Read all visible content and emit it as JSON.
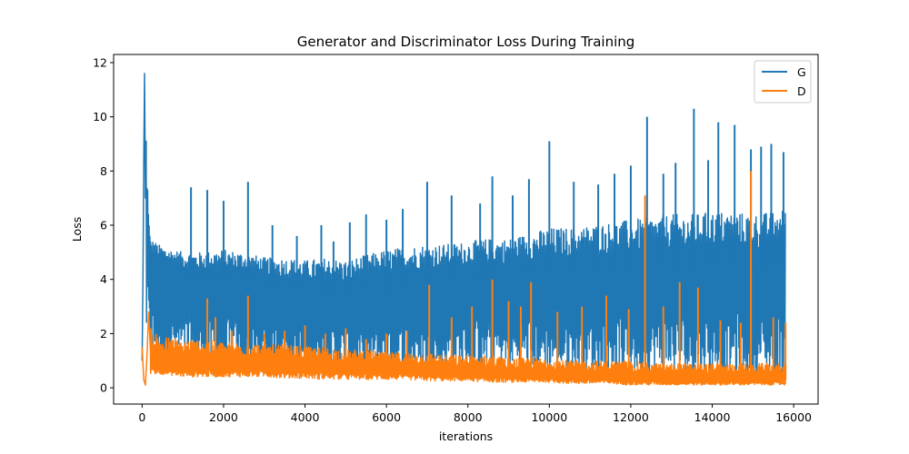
{
  "chart_data": {
    "type": "line",
    "title": "Generator and Discriminator Loss During Training",
    "xlabel": "iterations",
    "ylabel": "Loss",
    "xlim": [
      -700,
      16600
    ],
    "ylim": [
      -0.6,
      12.3
    ],
    "xticks": [
      0,
      2000,
      4000,
      6000,
      8000,
      10000,
      12000,
      14000,
      16000
    ],
    "yticks": [
      0,
      2,
      4,
      6,
      8,
      10,
      12
    ],
    "grid": false,
    "legend": "top-right",
    "series": [
      {
        "name": "G",
        "color": "#1f77b4",
        "points": [
          [
            0,
            1.0
          ],
          [
            20,
            4.0
          ],
          [
            40,
            8.3
          ],
          [
            60,
            11.6
          ],
          [
            80,
            7.0
          ],
          [
            100,
            9.1
          ],
          [
            120,
            6.5
          ],
          [
            140,
            8.4
          ],
          [
            160,
            5.2
          ],
          [
            200,
            4.6
          ],
          [
            300,
            4.5
          ],
          [
            500,
            4.4
          ],
          [
            800,
            4.2
          ],
          [
            1000,
            4.1
          ],
          [
            1200,
            4.0
          ],
          [
            1400,
            3.9
          ],
          [
            1600,
            4.0
          ],
          [
            1800,
            4.0
          ],
          [
            2000,
            3.9
          ],
          [
            2500,
            3.9
          ],
          [
            3000,
            3.8
          ],
          [
            3500,
            3.6
          ],
          [
            4000,
            3.5
          ],
          [
            4500,
            3.5
          ],
          [
            5000,
            3.4
          ],
          [
            5500,
            3.5
          ],
          [
            6000,
            3.6
          ],
          [
            6500,
            3.8
          ],
          [
            7000,
            3.9
          ],
          [
            7500,
            3.9
          ],
          [
            8000,
            4.0
          ],
          [
            8500,
            4.0
          ],
          [
            9000,
            4.1
          ],
          [
            9500,
            4.1
          ],
          [
            10000,
            4.2
          ],
          [
            10500,
            4.2
          ],
          [
            11000,
            4.2
          ],
          [
            11500,
            4.3
          ],
          [
            12000,
            4.3
          ],
          [
            12500,
            4.4
          ],
          [
            13000,
            4.4
          ],
          [
            13500,
            4.4
          ],
          [
            14000,
            4.5
          ],
          [
            14500,
            4.5
          ],
          [
            15000,
            4.4
          ],
          [
            15500,
            4.5
          ],
          [
            15800,
            4.6
          ]
        ],
        "band": [
          [
            100,
            1.2,
            8.0
          ],
          [
            200,
            1.0,
            5.5
          ],
          [
            500,
            0.9,
            5.2
          ],
          [
            1000,
            0.8,
            5.0
          ],
          [
            1500,
            0.7,
            5.0
          ],
          [
            2000,
            0.7,
            5.1
          ],
          [
            2500,
            0.6,
            5.0
          ],
          [
            3000,
            0.6,
            4.8
          ],
          [
            3500,
            0.5,
            4.8
          ],
          [
            4000,
            0.5,
            4.7
          ],
          [
            4500,
            0.5,
            4.8
          ],
          [
            5000,
            0.5,
            4.7
          ],
          [
            5500,
            0.5,
            4.9
          ],
          [
            6000,
            0.6,
            5.1
          ],
          [
            6500,
            0.6,
            5.2
          ],
          [
            7000,
            0.6,
            5.3
          ],
          [
            7500,
            0.6,
            5.3
          ],
          [
            8000,
            0.6,
            5.4
          ],
          [
            8500,
            0.6,
            5.5
          ],
          [
            9000,
            0.6,
            5.5
          ],
          [
            9500,
            0.6,
            5.7
          ],
          [
            10000,
            0.5,
            5.9
          ],
          [
            10500,
            0.5,
            5.9
          ],
          [
            11000,
            0.5,
            6.0
          ],
          [
            11500,
            0.5,
            6.1
          ],
          [
            12000,
            0.5,
            6.2
          ],
          [
            12500,
            0.4,
            6.3
          ],
          [
            13000,
            0.4,
            6.4
          ],
          [
            13500,
            0.4,
            6.4
          ],
          [
            14000,
            0.4,
            6.5
          ],
          [
            14500,
            0.4,
            6.5
          ],
          [
            15000,
            0.4,
            6.4
          ],
          [
            15500,
            0.4,
            6.5
          ],
          [
            15800,
            0.4,
            6.6
          ]
        ],
        "spikes": [
          [
            1200,
            7.4
          ],
          [
            1600,
            7.3
          ],
          [
            2000,
            6.9
          ],
          [
            2600,
            7.6
          ],
          [
            3200,
            6.0
          ],
          [
            3800,
            5.6
          ],
          [
            4400,
            6.0
          ],
          [
            4700,
            5.4
          ],
          [
            5100,
            6.1
          ],
          [
            5500,
            6.4
          ],
          [
            6000,
            6.2
          ],
          [
            6400,
            6.6
          ],
          [
            7000,
            7.6
          ],
          [
            7600,
            7.1
          ],
          [
            8300,
            6.8
          ],
          [
            8600,
            7.8
          ],
          [
            9100,
            7.1
          ],
          [
            9500,
            7.7
          ],
          [
            10000,
            9.1
          ],
          [
            10600,
            7.6
          ],
          [
            11200,
            7.5
          ],
          [
            11600,
            7.9
          ],
          [
            12000,
            8.2
          ],
          [
            12400,
            10.0
          ],
          [
            12800,
            7.9
          ],
          [
            13100,
            8.3
          ],
          [
            13550,
            10.3
          ],
          [
            13900,
            8.4
          ],
          [
            14150,
            9.8
          ],
          [
            14550,
            9.7
          ],
          [
            14950,
            8.8
          ],
          [
            15200,
            8.9
          ],
          [
            15450,
            9.0
          ],
          [
            15750,
            8.7
          ]
        ]
      },
      {
        "name": "D",
        "color": "#ff7f0e",
        "points": [
          [
            0,
            1.5
          ],
          [
            40,
            0.3
          ],
          [
            80,
            0.1
          ],
          [
            120,
            1.2
          ],
          [
            160,
            2.8
          ],
          [
            200,
            1.5
          ],
          [
            300,
            0.9
          ],
          [
            500,
            0.8
          ],
          [
            1000,
            0.8
          ],
          [
            1500,
            0.8
          ],
          [
            2000,
            0.8
          ],
          [
            2500,
            0.8
          ],
          [
            3000,
            0.8
          ],
          [
            3500,
            0.75
          ],
          [
            4000,
            0.75
          ],
          [
            4500,
            0.75
          ],
          [
            5000,
            0.7
          ],
          [
            5500,
            0.7
          ],
          [
            6000,
            0.65
          ],
          [
            6500,
            0.6
          ],
          [
            7000,
            0.6
          ],
          [
            7500,
            0.55
          ],
          [
            8000,
            0.5
          ],
          [
            8500,
            0.5
          ],
          [
            9000,
            0.45
          ],
          [
            9500,
            0.45
          ],
          [
            10000,
            0.45
          ],
          [
            10500,
            0.4
          ],
          [
            11000,
            0.4
          ],
          [
            11500,
            0.4
          ],
          [
            12000,
            0.35
          ],
          [
            12500,
            0.35
          ],
          [
            13000,
            0.3
          ],
          [
            13500,
            0.3
          ],
          [
            14000,
            0.3
          ],
          [
            14500,
            0.3
          ],
          [
            15000,
            0.3
          ],
          [
            15500,
            0.3
          ],
          [
            15800,
            0.3
          ]
        ],
        "band": [
          [
            200,
            0.5,
            2.2
          ],
          [
            500,
            0.5,
            1.9
          ],
          [
            1000,
            0.4,
            1.8
          ],
          [
            1500,
            0.4,
            1.8
          ],
          [
            2000,
            0.4,
            1.7
          ],
          [
            2500,
            0.4,
            1.7
          ],
          [
            3000,
            0.4,
            1.6
          ],
          [
            3500,
            0.35,
            1.6
          ],
          [
            4000,
            0.35,
            1.5
          ],
          [
            4500,
            0.3,
            1.5
          ],
          [
            5000,
            0.3,
            1.4
          ],
          [
            5500,
            0.3,
            1.4
          ],
          [
            6000,
            0.3,
            1.3
          ],
          [
            6500,
            0.3,
            1.3
          ],
          [
            7000,
            0.25,
            1.3
          ],
          [
            7500,
            0.25,
            1.2
          ],
          [
            8000,
            0.25,
            1.2
          ],
          [
            8500,
            0.2,
            1.2
          ],
          [
            9000,
            0.2,
            1.1
          ],
          [
            9500,
            0.2,
            1.1
          ],
          [
            10000,
            0.2,
            1.1
          ],
          [
            10500,
            0.15,
            1.0
          ],
          [
            11000,
            0.15,
            1.0
          ],
          [
            11500,
            0.15,
            1.0
          ],
          [
            12000,
            0.1,
            1.0
          ],
          [
            12500,
            0.1,
            0.9
          ],
          [
            13000,
            0.1,
            0.9
          ],
          [
            13500,
            0.1,
            0.9
          ],
          [
            14000,
            0.1,
            0.9
          ],
          [
            14500,
            0.1,
            0.9
          ],
          [
            15000,
            0.1,
            0.9
          ],
          [
            15500,
            0.1,
            0.9
          ],
          [
            15800,
            0.1,
            0.9
          ]
        ],
        "spikes": [
          [
            1600,
            3.3
          ],
          [
            1800,
            2.6
          ],
          [
            2200,
            2.1
          ],
          [
            2600,
            3.4
          ],
          [
            3000,
            2.0
          ],
          [
            3500,
            2.1
          ],
          [
            4000,
            2.3
          ],
          [
            4500,
            2.0
          ],
          [
            5000,
            2.2
          ],
          [
            5500,
            1.8
          ],
          [
            6000,
            2.0
          ],
          [
            6500,
            2.1
          ],
          [
            7050,
            3.8
          ],
          [
            7600,
            2.6
          ],
          [
            8100,
            3.0
          ],
          [
            8600,
            4.0
          ],
          [
            9000,
            3.2
          ],
          [
            9300,
            3.0
          ],
          [
            9550,
            3.9
          ],
          [
            10200,
            2.8
          ],
          [
            10800,
            3.0
          ],
          [
            11400,
            3.4
          ],
          [
            11950,
            2.9
          ],
          [
            12350,
            7.1
          ],
          [
            12800,
            3.0
          ],
          [
            13200,
            3.9
          ],
          [
            13650,
            3.7
          ],
          [
            14200,
            2.5
          ],
          [
            14700,
            2.4
          ],
          [
            14950,
            8.0
          ],
          [
            15500,
            2.6
          ],
          [
            15800,
            2.4
          ]
        ]
      }
    ]
  }
}
